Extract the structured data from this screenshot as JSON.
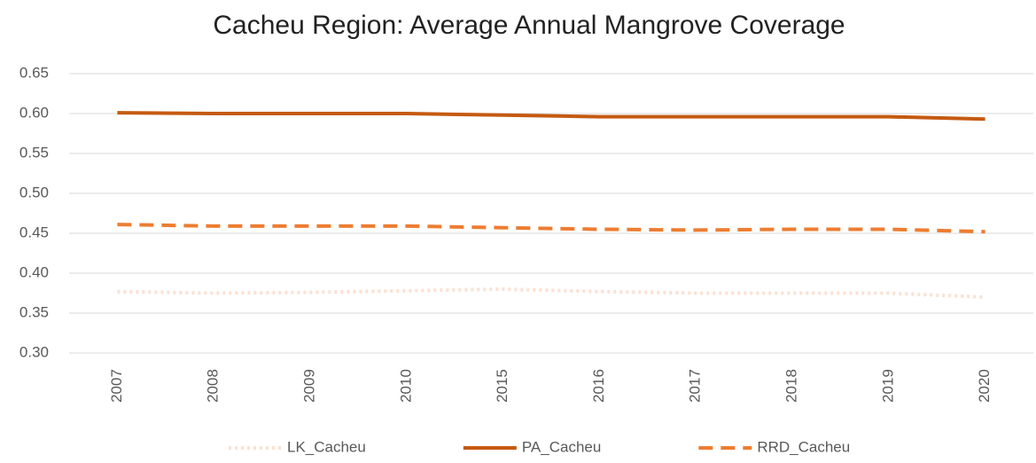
{
  "chart_data": {
    "type": "line",
    "title": "Cacheu Region: Average Annual Mangrove Coverage",
    "categories": [
      "2007",
      "2008",
      "2009",
      "2010",
      "2015",
      "2016",
      "2017",
      "2018",
      "2019",
      "2020"
    ],
    "series": [
      {
        "name": "LK_Cacheu",
        "color": "#fbe1d2",
        "dash": "dotted",
        "values": [
          0.377,
          0.375,
          0.376,
          0.378,
          0.38,
          0.377,
          0.375,
          0.375,
          0.375,
          0.37
        ]
      },
      {
        "name": "PA_Cacheu",
        "color": "#c55a11",
        "dash": "solid",
        "values": [
          0.601,
          0.6,
          0.6,
          0.6,
          0.598,
          0.596,
          0.596,
          0.596,
          0.596,
          0.593
        ]
      },
      {
        "name": "RRD_Cacheu",
        "color": "#ed7d31",
        "dash": "dashed",
        "values": [
          0.461,
          0.459,
          0.459,
          0.459,
          0.457,
          0.455,
          0.454,
          0.455,
          0.455,
          0.452
        ]
      }
    ],
    "ylim": [
      0.3,
      0.65
    ],
    "yticks": [
      {
        "value": 0.3,
        "label": "0.30"
      },
      0.35,
      {
        "value": 0.4,
        "label": "0.40"
      },
      0.45,
      {
        "value": 0.5,
        "label": "0.50"
      },
      0.55,
      {
        "value": 0.6,
        "label": "0.60"
      },
      0.65
    ],
    "grid": true,
    "legend": "bottom"
  }
}
